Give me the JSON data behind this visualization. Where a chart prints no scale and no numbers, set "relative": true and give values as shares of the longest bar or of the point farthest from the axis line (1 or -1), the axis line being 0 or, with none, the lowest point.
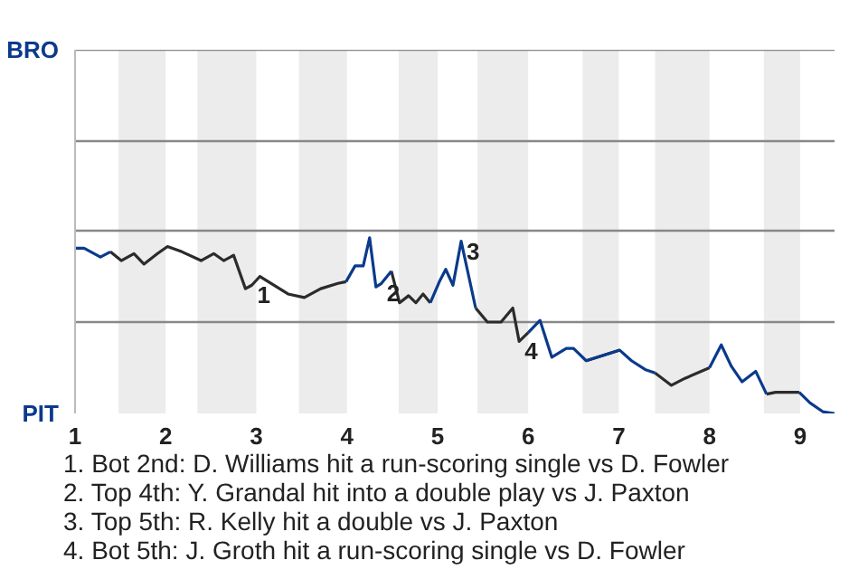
{
  "chart_data": {
    "type": "line",
    "relative": true,
    "x": [
      1.0,
      1.1,
      1.28,
      1.39,
      1.51,
      1.65,
      1.76,
      1.91,
      2.02,
      2.18,
      2.39,
      2.53,
      2.64,
      2.75,
      2.88,
      2.95,
      3.04,
      3.35,
      3.53,
      3.71,
      3.9,
      3.99,
      4.09,
      4.18,
      4.25,
      4.32,
      4.38,
      4.49,
      4.58,
      4.68,
      4.76,
      4.84,
      4.92,
      5.02,
      5.09,
      5.17,
      5.26,
      5.42,
      5.55,
      5.7,
      5.83,
      5.9,
      6.0,
      6.13,
      6.26,
      6.42,
      6.5,
      6.64,
      7.01,
      7.14,
      7.29,
      7.4,
      7.58,
      7.73,
      8.0,
      8.13,
      8.24,
      8.36,
      8.51,
      8.63,
      8.73,
      8.99,
      9.11,
      9.25,
      9.38
    ],
    "xlim": [
      1,
      9.38
    ],
    "xticks": [
      1,
      2,
      3,
      4,
      5,
      6,
      7,
      8,
      9
    ],
    "series": [
      {
        "color": "#2b2b2b",
        "values": [
          null,
          null,
          null,
          0.92,
          0.87,
          0.91,
          0.85,
          0.91,
          0.95,
          0.92,
          0.87,
          0.91,
          0.87,
          0.9,
          0.71,
          0.73,
          0.78,
          0.68,
          0.66,
          0.71,
          0.74,
          0.75,
          null,
          null,
          null,
          null,
          null,
          0.81,
          0.63,
          0.67,
          0.63,
          0.68,
          0.63,
          null,
          null,
          null,
          null,
          0.6,
          0.52,
          0.52,
          0.6,
          0.41,
          0.46,
          null,
          null,
          null,
          null,
          0.3,
          0.36,
          null,
          null,
          0.23,
          0.16,
          0.2,
          0.26,
          null,
          null,
          null,
          null,
          0.11,
          0.12,
          0.12,
          null,
          null,
          null
        ]
      },
      {
        "color": "#0b3a8c",
        "values": [
          0.94,
          0.94,
          0.89,
          0.92,
          null,
          null,
          null,
          null,
          null,
          null,
          null,
          null,
          null,
          null,
          null,
          null,
          null,
          null,
          null,
          null,
          null,
          0.75,
          0.84,
          0.84,
          1,
          0.72,
          0.74,
          0.81,
          null,
          null,
          null,
          null,
          0.63,
          0.75,
          0.82,
          0.73,
          0.98,
          0.6,
          null,
          null,
          null,
          null,
          0.46,
          0.53,
          0.32,
          0.37,
          0.37,
          0.3,
          0.36,
          0.3,
          0.25,
          0.23,
          null,
          null,
          0.26,
          0.39,
          0.27,
          0.18,
          0.24,
          0.11,
          null,
          0.12,
          0.06,
          0.01,
          0
        ]
      }
    ],
    "ref_lines": [
      {
        "axis": "y",
        "value": 0.52,
        "label": null,
        "color": "#888888"
      },
      {
        "axis": "y",
        "value": 1.04,
        "label": null,
        "color": "#888888"
      },
      {
        "axis": "y",
        "value": 1.55,
        "label": null,
        "color": "#888888"
      },
      {
        "axis": "y",
        "value": 2.07,
        "label": "BRO",
        "color": "#888888"
      }
    ],
    "bands": [
      {
        "axis": "x",
        "from": 1.48,
        "to": 2,
        "color": "#ececec"
      },
      {
        "axis": "x",
        "from": 2.35,
        "to": 3,
        "color": "#ececec"
      },
      {
        "axis": "x",
        "from": 3.47,
        "to": 4,
        "color": "#ececec"
      },
      {
        "axis": "x",
        "from": 4.57,
        "to": 5,
        "color": "#ececec"
      },
      {
        "axis": "x",
        "from": 5.44,
        "to": 6,
        "color": "#ececec"
      },
      {
        "axis": "x",
        "from": 6.6,
        "to": 7,
        "color": "#ececec"
      },
      {
        "axis": "x",
        "from": 7.4,
        "to": 8,
        "color": "#ececec"
      },
      {
        "axis": "x",
        "from": 8.6,
        "to": 9,
        "color": "#ececec"
      }
    ],
    "annotations": [
      "PIT",
      {
        "text": "1",
        "x": 2.95,
        "y": 0.73
      },
      {
        "text": "2",
        "x": 4.38,
        "y": 0.74
      },
      {
        "text": "3",
        "x": 5.26,
        "y": 0.98
      },
      {
        "text": "4",
        "x": 5.9,
        "y": 0.41
      },
      "1. Bot 2nd: D. Williams hit a run-scoring single vs D. Fowler",
      "2. Top 4th: Y. Grandal hit into a double play vs J. Paxton",
      "3. Top 5th: R. Kelly hit a double vs J. Paxton",
      "4. Bot 5th: J. Groth hit a run-scoring single vs D. Fowler"
    ]
  }
}
